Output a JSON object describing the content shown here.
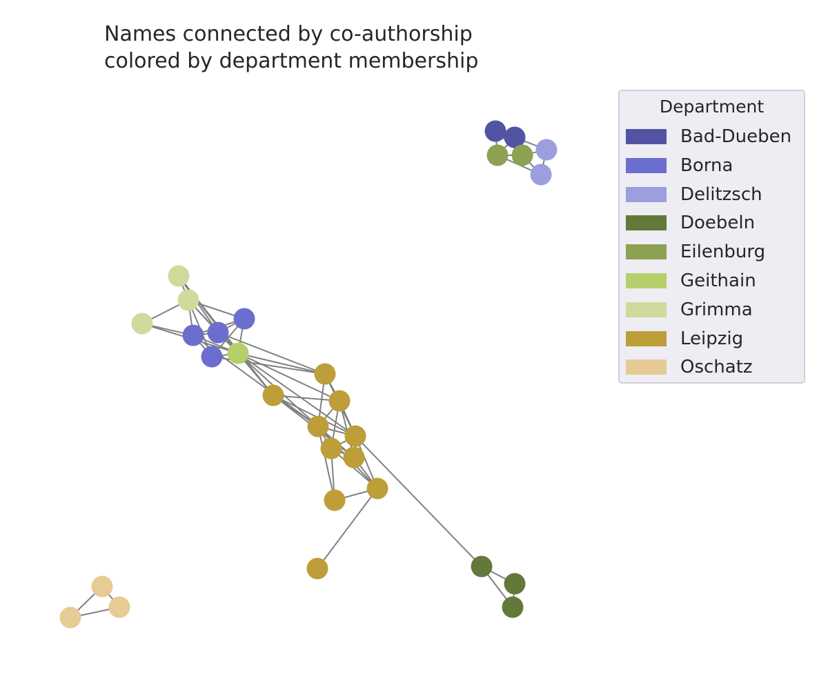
{
  "title": {
    "line1": "Names connected by co-authorship",
    "line2": "colored by department membership"
  },
  "legend": {
    "title": "Department",
    "entries": [
      {
        "label": "Bad-Dueben",
        "color": "#5253a3"
      },
      {
        "label": "Borna",
        "color": "#6b6ecf"
      },
      {
        "label": "Delitzsch",
        "color": "#9c9ede"
      },
      {
        "label": "Doebeln",
        "color": "#637939"
      },
      {
        "label": "Eilenburg",
        "color": "#8ca252"
      },
      {
        "label": "Geithain",
        "color": "#b5cf6b"
      },
      {
        "label": "Grimma",
        "color": "#cedb9c"
      },
      {
        "label": "Leipzig",
        "color": "#bd9e39"
      },
      {
        "label": "Oschatz",
        "color": "#e7cb94"
      }
    ]
  },
  "chart_data": {
    "type": "network",
    "edge_color": "#808080",
    "nodes": [
      {
        "id": "bd1",
        "department": "Bad-Dueben"
      },
      {
        "id": "bd2",
        "department": "Bad-Dueben"
      },
      {
        "id": "ei1",
        "department": "Eilenburg"
      },
      {
        "id": "ei2",
        "department": "Eilenburg"
      },
      {
        "id": "de1",
        "department": "Delitzsch"
      },
      {
        "id": "de2",
        "department": "Delitzsch"
      },
      {
        "id": "gr1",
        "department": "Grimma"
      },
      {
        "id": "gr2",
        "department": "Grimma"
      },
      {
        "id": "gr3",
        "department": "Grimma"
      },
      {
        "id": "bo1",
        "department": "Borna"
      },
      {
        "id": "bo2",
        "department": "Borna"
      },
      {
        "id": "bo3",
        "department": "Borna"
      },
      {
        "id": "bo4",
        "department": "Borna"
      },
      {
        "id": "ge1",
        "department": "Geithain"
      },
      {
        "id": "le1",
        "department": "Leipzig"
      },
      {
        "id": "le2",
        "department": "Leipzig"
      },
      {
        "id": "le3",
        "department": "Leipzig"
      },
      {
        "id": "le4",
        "department": "Leipzig"
      },
      {
        "id": "le5",
        "department": "Leipzig"
      },
      {
        "id": "le6",
        "department": "Leipzig"
      },
      {
        "id": "le7",
        "department": "Leipzig"
      },
      {
        "id": "le8",
        "department": "Leipzig"
      },
      {
        "id": "le9",
        "department": "Leipzig"
      },
      {
        "id": "le10",
        "department": "Leipzig"
      },
      {
        "id": "do1",
        "department": "Doebeln"
      },
      {
        "id": "do2",
        "department": "Doebeln"
      },
      {
        "id": "do3",
        "department": "Doebeln"
      },
      {
        "id": "os1",
        "department": "Oschatz"
      },
      {
        "id": "os2",
        "department": "Oschatz"
      },
      {
        "id": "os3",
        "department": "Oschatz"
      }
    ],
    "edges": [
      [
        "bd1",
        "bd2"
      ],
      [
        "bd1",
        "ei1"
      ],
      [
        "bd1",
        "ei2"
      ],
      [
        "bd2",
        "de1"
      ],
      [
        "bd2",
        "ei2"
      ],
      [
        "bd2",
        "ei1"
      ],
      [
        "ei1",
        "ei2"
      ],
      [
        "ei2",
        "de1"
      ],
      [
        "ei2",
        "de2"
      ],
      [
        "ei1",
        "de2"
      ],
      [
        "de1",
        "de2"
      ],
      [
        "gr1",
        "gr2"
      ],
      [
        "gr1",
        "bo2"
      ],
      [
        "gr1",
        "ge1"
      ],
      [
        "gr2",
        "gr3"
      ],
      [
        "gr2",
        "bo3"
      ],
      [
        "gr2",
        "bo1"
      ],
      [
        "gr2",
        "ge1"
      ],
      [
        "gr2",
        "bo2"
      ],
      [
        "gr2",
        "bo4"
      ],
      [
        "gr3",
        "bo1"
      ],
      [
        "gr3",
        "ge1"
      ],
      [
        "gr3",
        "le1"
      ],
      [
        "bo1",
        "bo2"
      ],
      [
        "bo1",
        "bo4"
      ],
      [
        "bo1",
        "ge1"
      ],
      [
        "bo1",
        "le2"
      ],
      [
        "bo2",
        "bo4"
      ],
      [
        "bo2",
        "ge1"
      ],
      [
        "bo2",
        "bo3"
      ],
      [
        "bo2",
        "le4"
      ],
      [
        "bo3",
        "ge1"
      ],
      [
        "bo3",
        "bo4"
      ],
      [
        "bo3",
        "le2"
      ],
      [
        "bo4",
        "ge1"
      ],
      [
        "ge1",
        "le2"
      ],
      [
        "ge1",
        "le1"
      ],
      [
        "ge1",
        "le3"
      ],
      [
        "ge1",
        "le5"
      ],
      [
        "ge1",
        "le4"
      ],
      [
        "le1",
        "le3"
      ],
      [
        "le1",
        "le4"
      ],
      [
        "le1",
        "le5"
      ],
      [
        "le1",
        "le7"
      ],
      [
        "le2",
        "le3"
      ],
      [
        "le2",
        "le4"
      ],
      [
        "le2",
        "le5"
      ],
      [
        "le3",
        "le5"
      ],
      [
        "le3",
        "le6"
      ],
      [
        "le3",
        "le4"
      ],
      [
        "le3",
        "le7"
      ],
      [
        "le4",
        "le5"
      ],
      [
        "le4",
        "le6"
      ],
      [
        "le4",
        "le7"
      ],
      [
        "le4",
        "le8"
      ],
      [
        "le4",
        "le9"
      ],
      [
        "le5",
        "le6"
      ],
      [
        "le5",
        "le7"
      ],
      [
        "le5",
        "le8"
      ],
      [
        "le5",
        "do1"
      ],
      [
        "le6",
        "le7"
      ],
      [
        "le6",
        "le8"
      ],
      [
        "le6",
        "le9"
      ],
      [
        "le7",
        "le8"
      ],
      [
        "le8",
        "le9"
      ],
      [
        "le8",
        "le10"
      ],
      [
        "do1",
        "do2"
      ],
      [
        "do1",
        "do3"
      ],
      [
        "do2",
        "do3"
      ],
      [
        "os1",
        "os2"
      ],
      [
        "os1",
        "os3"
      ],
      [
        "os2",
        "os3"
      ]
    ]
  }
}
